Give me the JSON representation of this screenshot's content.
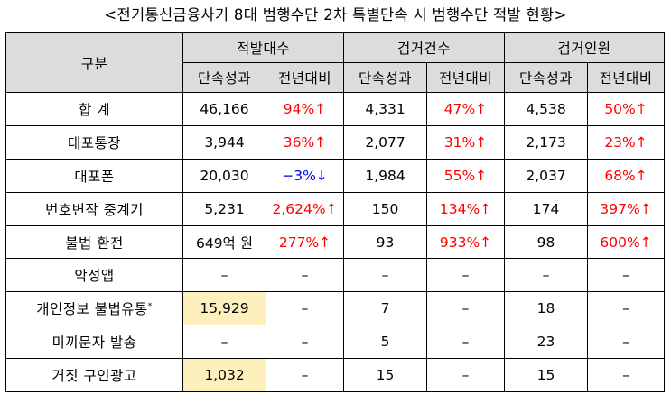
{
  "title": "<전기통신금융사기 8대 범행수단 2차 특별단속 시 범행수단 적발 현황>",
  "header": {
    "category_label": "구분",
    "groups": [
      "적발대수",
      "검거건수",
      "검거인원"
    ],
    "sub_labels": [
      "단속성과",
      "전년대비"
    ]
  },
  "rows": [
    {
      "label": "합  계",
      "cells": [
        "46,166",
        "94%↑",
        "4,331",
        "47%↑",
        "4,538",
        "50%↑"
      ]
    },
    {
      "label": "대포통장",
      "cells": [
        "3,944",
        "36%↑",
        "2,077",
        "31%↑",
        "2,173",
        "23%↑"
      ]
    },
    {
      "label": "대포폰",
      "cells": [
        "20,030",
        "−3%↓",
        "1,984",
        "55%↑",
        "2,037",
        "68%↑"
      ]
    },
    {
      "label": "번호변작 중계기",
      "cells": [
        "5,231",
        "2,624%↑",
        "150",
        "134%↑",
        "174",
        "397%↑"
      ]
    },
    {
      "label": "불법 환전",
      "cells": [
        "649억 원",
        "277%↑",
        "93",
        "933%↑",
        "98",
        "600%↑"
      ]
    },
    {
      "label": "악성앱",
      "cells": [
        "–",
        "–",
        "–",
        "–",
        "–",
        "–"
      ]
    },
    {
      "label": "개인정보 불법유통",
      "footnote": "*",
      "cells": [
        "15,929",
        "–",
        "7",
        "–",
        "18",
        "–"
      ]
    },
    {
      "label": "미끼문자 발송",
      "cells": [
        "–",
        "–",
        "5",
        "–",
        "23",
        "–"
      ]
    },
    {
      "label": "거짓 구인광고",
      "cells": [
        "1,032",
        "–",
        "15",
        "–",
        "15",
        "–"
      ]
    }
  ],
  "colors": {
    "increase": "#ff0000",
    "decrease": "#0000ff",
    "highlight": "#fdf0bd",
    "header_bg": "#dcdcdc"
  }
}
